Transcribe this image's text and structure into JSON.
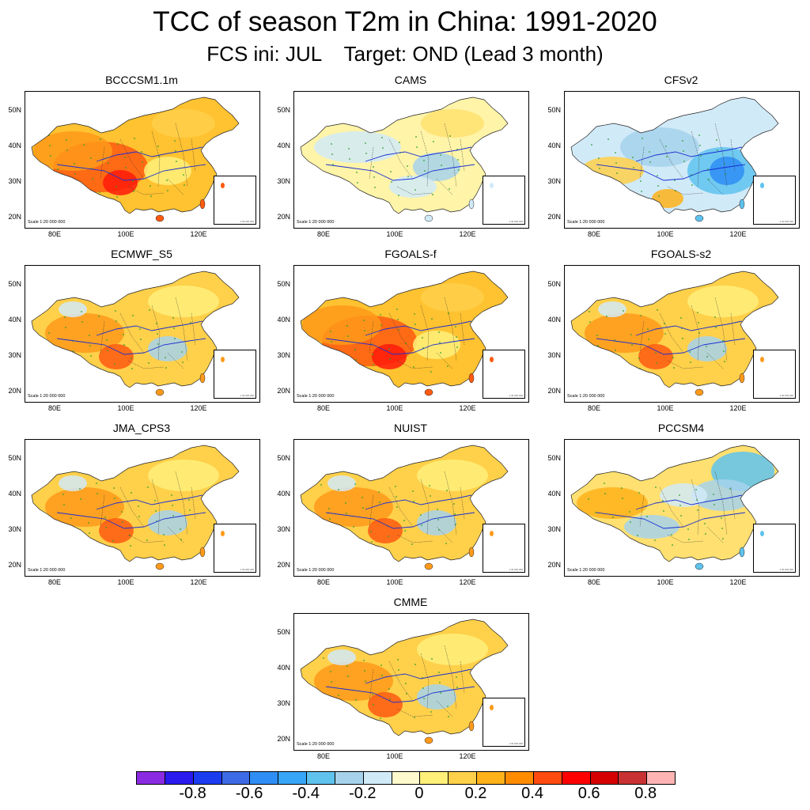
{
  "figure": {
    "title": "TCC of season T2m in China: 1991-2020",
    "subtitle": "FCS ini: JUL    Target: OND (Lead 3 month)"
  },
  "axes": {
    "lat_ticks": [
      "50N",
      "40N",
      "30N",
      "20N"
    ],
    "lon_ticks": [
      "80E",
      "100E",
      "120E"
    ],
    "scale_note": "Scale 1:20 000 000",
    "inset_scale_note": "1:40 000 000"
  },
  "panels": [
    {
      "name": "BCCCSM1.1m",
      "tone": "strong-positive"
    },
    {
      "name": "CAMS",
      "tone": "weak-mixed"
    },
    {
      "name": "CFSv2",
      "tone": "negative-east"
    },
    {
      "name": "ECMWF_S5",
      "tone": "positive"
    },
    {
      "name": "FGOALS-f",
      "tone": "strong-positive"
    },
    {
      "name": "FGOALS-s2",
      "tone": "positive"
    },
    {
      "name": "JMA_CPS3",
      "tone": "positive"
    },
    {
      "name": "NUIST",
      "tone": "positive"
    },
    {
      "name": "PCCSM4",
      "tone": "negative-northeast"
    },
    {
      "name": "CMME",
      "tone": "positive"
    }
  ],
  "colorbar": {
    "colors": [
      "#8a2be2",
      "#2a1aee",
      "#1c3cf0",
      "#3d6be6",
      "#2e8ef5",
      "#37a6f7",
      "#5fc3ee",
      "#a6d2ec",
      "#d1eaf8",
      "#fffacd",
      "#fff07a",
      "#ffd04a",
      "#ffb11a",
      "#ff8c00",
      "#ff4a10",
      "#ff0000",
      "#d60000",
      "#c83232",
      "#ffb4b4"
    ],
    "labels": [
      "-0.8",
      "-0.6",
      "-0.4",
      "-0.2",
      "0",
      "0.2",
      "0.4",
      "0.6",
      "0.8"
    ]
  }
}
